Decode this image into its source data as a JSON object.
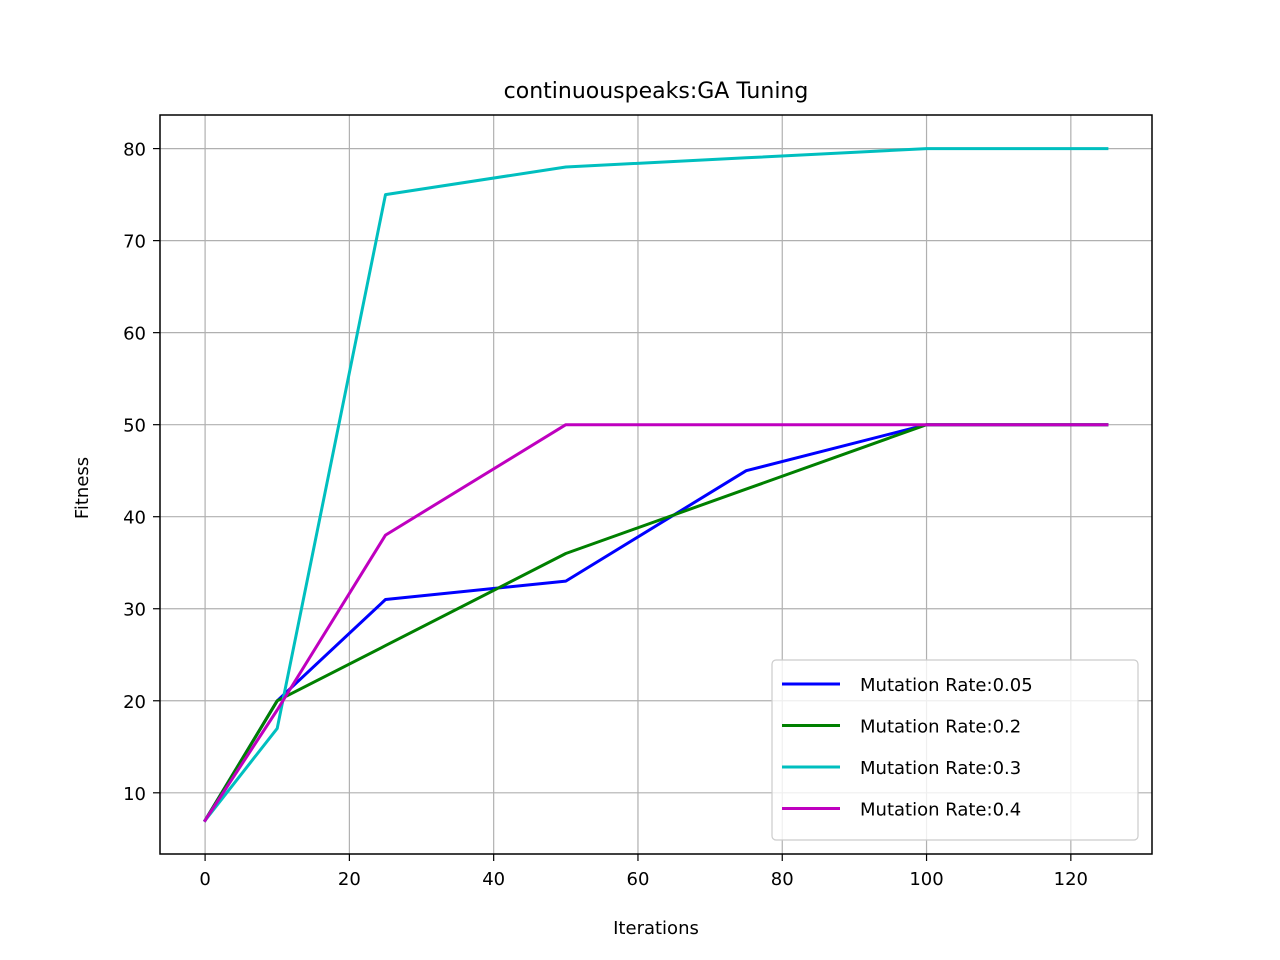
{
  "chart_data": {
    "type": "line",
    "title": "continuouspeaks:GA Tuning",
    "xlabel": "Iterations",
    "ylabel": "Fitness",
    "xlim": [
      -6.25,
      131.25
    ],
    "ylim": [
      3.35,
      83.65
    ],
    "xticks": [
      0,
      20,
      40,
      60,
      80,
      100,
      120
    ],
    "yticks": [
      10,
      20,
      30,
      40,
      50,
      60,
      70,
      80
    ],
    "grid": true,
    "legend_position": "lower-right",
    "x": [
      0,
      10,
      25,
      50,
      75,
      100,
      125
    ],
    "series": [
      {
        "name": "Mutation Rate:0.05",
        "color": "#0000ff",
        "values": [
          7,
          20,
          31,
          33,
          45,
          50,
          50
        ]
      },
      {
        "name": "Mutation Rate:0.2",
        "color": "#008000",
        "values": [
          7,
          20,
          26,
          36,
          43,
          50,
          50
        ]
      },
      {
        "name": "Mutation Rate:0.3",
        "color": "#00bfbf",
        "values": [
          7,
          17,
          75,
          78,
          79,
          80,
          80
        ]
      },
      {
        "name": "Mutation Rate:0.4",
        "color": "#bf00bf",
        "values": [
          7,
          19,
          38,
          50,
          50,
          50,
          50
        ]
      }
    ]
  }
}
